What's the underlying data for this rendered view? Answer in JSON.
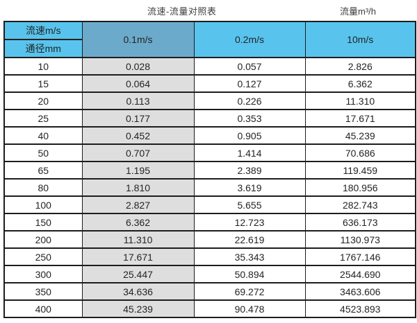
{
  "page": {
    "title_left": "流速-流量对照表",
    "title_right": "流量m³/h"
  },
  "table": {
    "header": {
      "row_label_top": "流速m/s",
      "row_label_bottom": "通径mm",
      "velocity_cols": [
        "0.1m/s",
        "0.2m/s",
        "10m/s"
      ]
    }
  },
  "chart_data": {
    "type": "table",
    "title": "流速-流量对照表",
    "flow_unit_label": "流量m³/h",
    "columns": [
      "通径mm",
      "0.1m/s",
      "0.2m/s",
      "10m/s"
    ],
    "highlighted_column": "0.1m/s",
    "rows": [
      [
        "10",
        "0.028",
        "0.057",
        "2.826"
      ],
      [
        "15",
        "0.064",
        "0.127",
        "6.362"
      ],
      [
        "20",
        "0.113",
        "0.226",
        "11.310"
      ],
      [
        "25",
        "0.177",
        "0.353",
        "17.671"
      ],
      [
        "40",
        "0.452",
        "0.905",
        "45.239"
      ],
      [
        "50",
        "0.707",
        "1.414",
        "70.686"
      ],
      [
        "65",
        "1.195",
        "2.389",
        "119.459"
      ],
      [
        "80",
        "1.810",
        "3.619",
        "180.956"
      ],
      [
        "100",
        "2.827",
        "5.655",
        "282.743"
      ],
      [
        "150",
        "6.362",
        "12.723",
        "636.173"
      ],
      [
        "200",
        "11.310",
        "22.619",
        "1130.973"
      ],
      [
        "250",
        "17.671",
        "35.343",
        "1767.146"
      ],
      [
        "300",
        "25.447",
        "50.894",
        "2544.690"
      ],
      [
        "350",
        "34.636",
        "69.272",
        "3463.606"
      ],
      [
        "400",
        "45.239",
        "90.478",
        "4523.893"
      ]
    ]
  },
  "colors": {
    "header_cyan": "#58C4EE",
    "header_highlight_blue": "#6CAACB",
    "column_highlight_gray": "#DEDEDE",
    "border": "#1C1C1C"
  }
}
